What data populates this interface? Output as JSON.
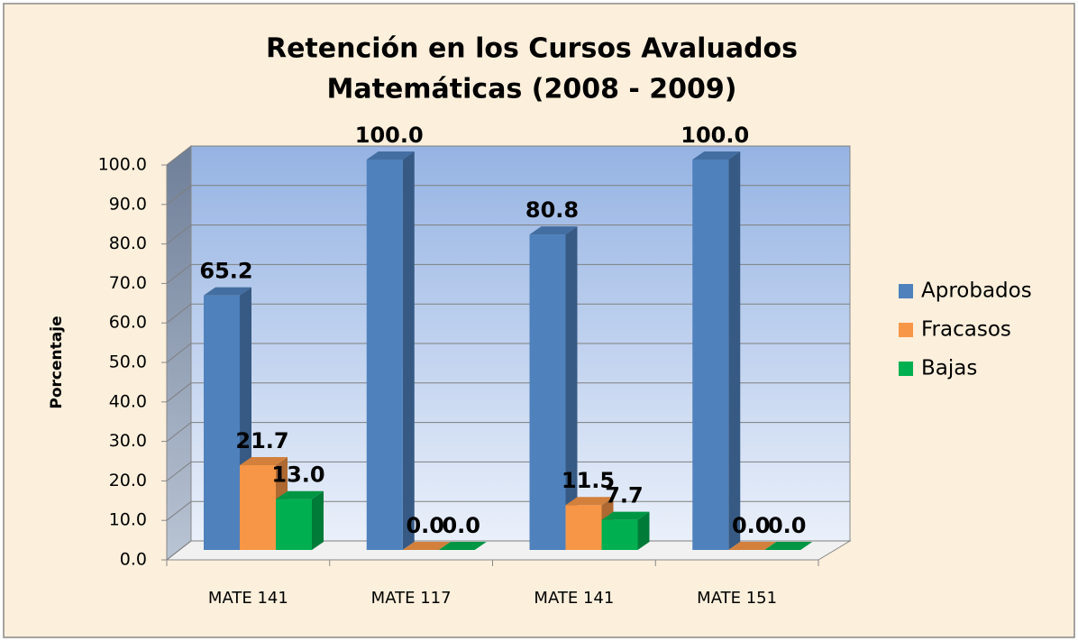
{
  "chart_data": {
    "type": "bar3d",
    "title": "Retención en los Cursos  Avaluados",
    "subtitle": "Matemáticas (2008 - 2009)",
    "y_label": "Porcentaje",
    "categories": [
      "MATE 141",
      "MATE 117",
      "MATE 141",
      "MATE 151"
    ],
    "series": [
      {
        "name": "Aprobados",
        "color": "#4f81bd",
        "values": [
          65.2,
          100,
          80.8,
          100
        ],
        "value_labels": [
          "65.2",
          "100.0",
          "80.8",
          "100.0"
        ]
      },
      {
        "name": "Fracasos",
        "color": "#f79646",
        "values": [
          21.7,
          0,
          11.5,
          0
        ],
        "value_labels": [
          "21.7",
          "0.0",
          "11.5",
          "0.0"
        ]
      },
      {
        "name": "Bajas",
        "color": "#00b050",
        "values": [
          13.0,
          0,
          7.7,
          0
        ],
        "value_labels": [
          "13.0",
          "0.0",
          "7.7",
          "0.0"
        ]
      }
    ],
    "ylim": [
      0,
      100
    ],
    "yticks": [
      {
        "value": 0,
        "label": "0.0"
      },
      {
        "value": 10,
        "label": "10.0"
      },
      {
        "value": 20,
        "label": "20.0"
      },
      {
        "value": 30,
        "label": "30.0"
      },
      {
        "value": 40,
        "label": "40.0"
      },
      {
        "value": 50,
        "label": "50.0"
      },
      {
        "value": 60,
        "label": "60.0"
      },
      {
        "value": 70,
        "label": "70.0"
      },
      {
        "value": 80,
        "label": "80.0"
      },
      {
        "value": 90,
        "label": "90.0"
      },
      {
        "value": 100,
        "label": "100.0"
      }
    ],
    "grid": true,
    "legend": "right"
  }
}
